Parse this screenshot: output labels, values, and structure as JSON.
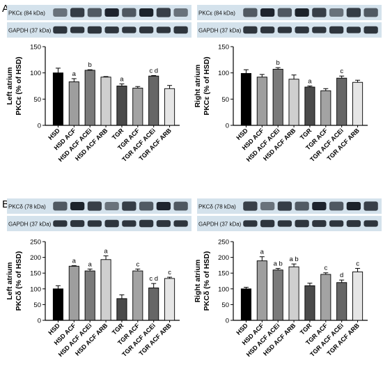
{
  "panel_a_letter": "A",
  "panel_b_letter": "B",
  "chart_data": [
    {
      "type": "bar",
      "panel": "A",
      "side": "left",
      "blot_labels": [
        "PKCε (84 kDa)",
        "GAPDH (37 kDa)"
      ],
      "ylabel": [
        "Left atrium",
        "PKCε (% of HSD)"
      ],
      "ylim": [
        0,
        150
      ],
      "yticks": [
        0,
        50,
        100,
        150
      ],
      "categories": [
        "HSD",
        "HSD ACF",
        "HSD ACF ACEi",
        "HSD ACF ARB",
        "TGR",
        "TGR ACF",
        "TGR ACF ACEi",
        "TGR ACF ARB"
      ],
      "values": [
        100,
        83,
        105,
        92,
        75,
        71,
        94,
        70
      ],
      "errors": [
        9,
        6,
        1,
        1,
        4,
        3,
        1,
        6
      ],
      "annotations": [
        "",
        "a",
        "b",
        "",
        "a",
        "",
        "c d",
        ""
      ],
      "fills": [
        "#000000",
        "#9e9e9e",
        "#7a7a7a",
        "#cfcfcf",
        "#4a4a4a",
        "#a3a3a3",
        "#666666",
        "#e6e6e6"
      ]
    },
    {
      "type": "bar",
      "panel": "A",
      "side": "right",
      "blot_labels": [
        "PKCε (84 kDa)",
        "GAPDH (37 kDa)"
      ],
      "ylabel": [
        "Right atrium",
        "PKCε (% of HSD)"
      ],
      "ylim": [
        0,
        150
      ],
      "yticks": [
        0,
        50,
        100,
        150
      ],
      "categories": [
        "HSD",
        "HSD ACF",
        "HSD ACF ACEi",
        "HSD ACF ARB",
        "TGR",
        "TGR ACF",
        "TGR ACF ACEi",
        "TGR ACF ARB"
      ],
      "values": [
        99,
        92,
        107,
        88,
        73,
        66,
        90,
        82
      ],
      "errors": [
        7,
        5,
        3,
        8,
        2,
        4,
        4,
        4
      ],
      "annotations": [
        "",
        "",
        "b",
        "",
        "a",
        "",
        "c",
        ""
      ],
      "fills": [
        "#000000",
        "#9e9e9e",
        "#7a7a7a",
        "#cfcfcf",
        "#4a4a4a",
        "#a3a3a3",
        "#666666",
        "#e6e6e6"
      ]
    },
    {
      "type": "bar",
      "panel": "B",
      "side": "left",
      "blot_labels": [
        "PKCδ (78 kDa)",
        "GAPDH (37 kDa)"
      ],
      "ylabel": [
        "Left atrium",
        "PKCδ (% of HSD)"
      ],
      "ylim": [
        0,
        250
      ],
      "yticks": [
        0,
        50,
        100,
        150,
        200,
        250
      ],
      "categories": [
        "HSD",
        "HSD ACF",
        "HSD ACF ACEi",
        "HSD ACF ARB",
        "TGR",
        "TGR ACF",
        "TGR ACF ACEi",
        "TGR ACF ARB"
      ],
      "values": [
        100,
        172,
        157,
        193,
        69,
        157,
        103,
        133
      ],
      "errors": [
        10,
        2,
        6,
        12,
        12,
        6,
        14,
        4
      ],
      "annotations": [
        "",
        "a",
        "a",
        "a",
        "",
        "c",
        "c d",
        "c"
      ],
      "fills": [
        "#000000",
        "#9e9e9e",
        "#7a7a7a",
        "#cfcfcf",
        "#4a4a4a",
        "#a3a3a3",
        "#666666",
        "#e6e6e6"
      ]
    },
    {
      "type": "bar",
      "panel": "B",
      "side": "right",
      "blot_labels": [
        "PKCδ (78 kDa)",
        "GAPDH (37 kDa)"
      ],
      "ylabel": [
        "Right atrium",
        "PKCδ (% of HSD)"
      ],
      "ylim": [
        0,
        250
      ],
      "yticks": [
        0,
        50,
        100,
        150,
        200,
        250
      ],
      "categories": [
        "HSD",
        "HSD ACF",
        "HSD ACF ACEi",
        "HSD ACF ARB",
        "TGR",
        "TGR ACF",
        "TGR ACF ACEi",
        "TGR ACF ARB"
      ],
      "values": [
        100,
        189,
        160,
        170,
        110,
        146,
        120,
        154
      ],
      "errors": [
        5,
        13,
        5,
        9,
        8,
        5,
        8,
        11
      ],
      "annotations": [
        "",
        "a",
        "a b",
        "a b",
        "",
        "c",
        "d",
        "c"
      ],
      "fills": [
        "#000000",
        "#9e9e9e",
        "#7a7a7a",
        "#cfcfcf",
        "#4a4a4a",
        "#a3a3a3",
        "#666666",
        "#e6e6e6"
      ]
    }
  ]
}
